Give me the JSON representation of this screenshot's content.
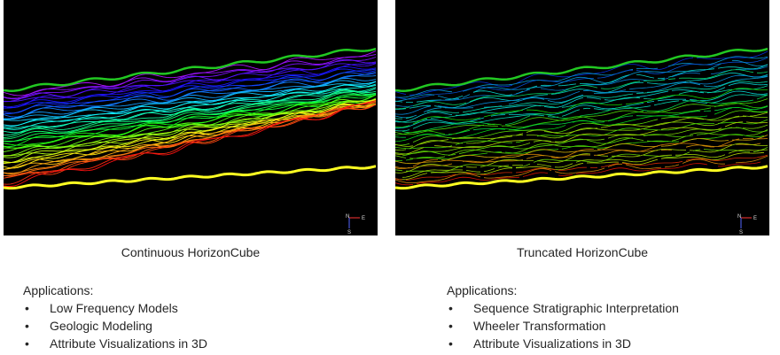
{
  "panels": [
    {
      "id": "left",
      "caption": "Continuous HorizonCube",
      "style": "continuous",
      "compass": {
        "north": "N",
        "east": "E",
        "south": "S"
      }
    },
    {
      "id": "right",
      "caption": "Truncated HorizonCube",
      "style": "truncated",
      "compass": {
        "north": "N",
        "east": "E",
        "south": "S"
      }
    }
  ],
  "applications_left": {
    "title": "Applications:",
    "items": [
      "Low Frequency Models",
      "Geologic Modeling",
      "Attribute Visualizations in 3D"
    ]
  },
  "applications_right": {
    "title": "Applications:",
    "items": [
      "Sequence Stratigraphic Interpretation",
      "Wheeler Transformation",
      "Attribute Visualizations in 3D"
    ]
  },
  "colors": {
    "top_horizon": "#22c822",
    "bottom_horizon": "#ffff22",
    "background": "#000000",
    "bullet": "•"
  }
}
